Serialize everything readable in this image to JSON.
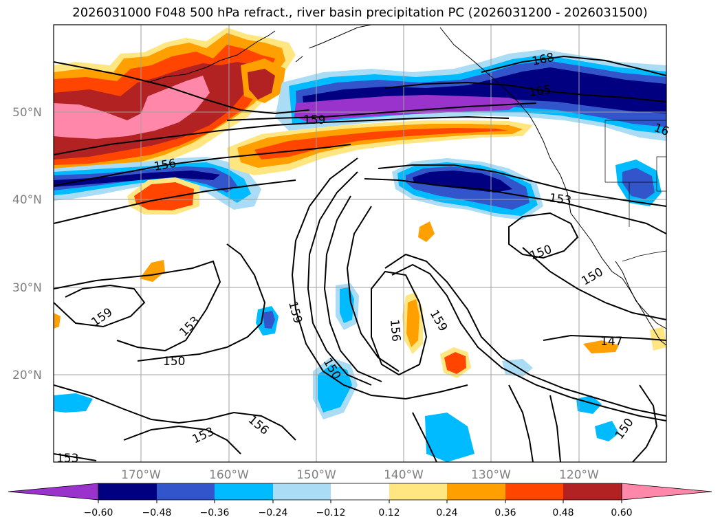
{
  "title": "2026031000 F048 500 hPa refract., river basin precipitation PC (2026031200 - 2026031500)",
  "map": {
    "lat_ticks": [
      "50°N",
      "40°N",
      "30°N",
      "20°N"
    ],
    "lon_ticks": [
      "170°W",
      "160°W",
      "150°W",
      "140°W",
      "130°W",
      "120°W"
    ],
    "grid": true
  },
  "contour_labels": [
    "168",
    "165",
    "159",
    "16",
    "156",
    "153",
    "150",
    "150",
    "159",
    "153",
    "150",
    "156",
    "159",
    "150",
    "156",
    "153",
    "153",
    "159",
    "147",
    "150"
  ],
  "colorbar": {
    "tick_labels": [
      "−0.60",
      "−0.48",
      "−0.36",
      "−0.24",
      "−0.12",
      "0.12",
      "0.24",
      "0.36",
      "0.48",
      "0.60"
    ],
    "colors": [
      "#9933cc",
      "#000080",
      "#3355cc",
      "#00bbff",
      "#aaddf5",
      "#ffffff",
      "#ffe680",
      "#ffa000",
      "#ff4500",
      "#b22222",
      "#ff88aa"
    ],
    "extend": "both"
  },
  "field_colors": {
    "purple": "#9933cc",
    "navy": "#000080",
    "royal": "#3355cc",
    "cyan": "#00bbff",
    "light_blue": "#aaddf5",
    "yellow": "#ffe680",
    "orange": "#ffa000",
    "red_orange": "#ff4500",
    "firebrick": "#b22222",
    "pink": "#ff88aa"
  }
}
